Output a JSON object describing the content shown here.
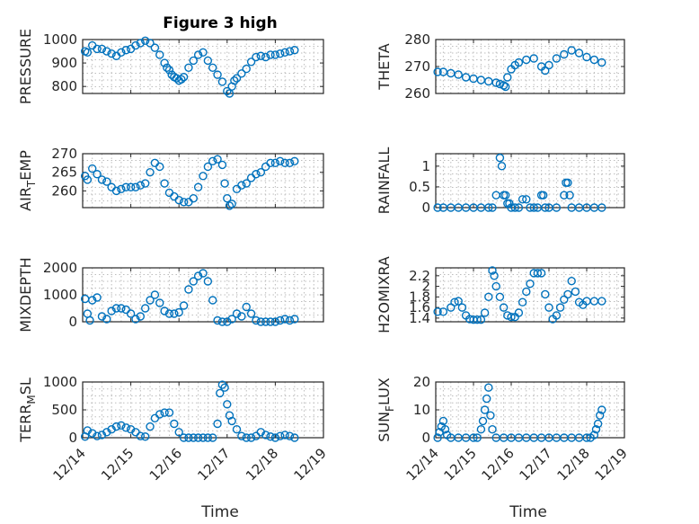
{
  "figure_title": "Figure 3 high",
  "x_label": "Time",
  "x_tick_labels": [
    "12/14",
    "12/15",
    "12/16",
    "12/17",
    "12/18",
    "12/19"
  ],
  "marker_color": "#0072BD",
  "chart_data": [
    {
      "type": "scatter",
      "ylabel_main": "PRESSURE",
      "ylabel_sub": "",
      "ylabel_tail": "",
      "ylim": [
        770,
        1000
      ],
      "yticks": [
        800,
        900,
        1000
      ],
      "grid": true,
      "x": [
        0.05,
        0.1,
        0.2,
        0.3,
        0.4,
        0.5,
        0.6,
        0.7,
        0.8,
        0.9,
        1.0,
        1.1,
        1.2,
        1.3,
        1.4,
        1.5,
        1.6,
        1.7,
        1.75,
        1.8,
        1.85,
        1.9,
        1.95,
        2.0,
        2.05,
        2.1,
        2.2,
        2.3,
        2.4,
        2.5,
        2.6,
        2.7,
        2.8,
        2.9,
        3.0,
        3.05,
        3.1,
        3.15,
        3.2,
        3.3,
        3.4,
        3.5,
        3.6,
        3.7,
        3.8,
        3.9,
        4.0,
        4.1,
        4.2,
        4.3,
        4.4
      ],
      "y": [
        950,
        945,
        975,
        960,
        960,
        950,
        940,
        930,
        945,
        955,
        960,
        975,
        985,
        995,
        985,
        965,
        935,
        900,
        880,
        870,
        850,
        840,
        835,
        825,
        830,
        840,
        880,
        910,
        935,
        945,
        910,
        880,
        850,
        820,
        780,
        770,
        800,
        825,
        835,
        855,
        875,
        905,
        925,
        930,
        925,
        935,
        935,
        940,
        945,
        950,
        955
      ]
    },
    {
      "type": "scatter",
      "ylabel_main": "THETA",
      "ylabel_sub": "",
      "ylabel_tail": "",
      "ylim": [
        260,
        280
      ],
      "yticks": [
        260,
        270,
        280
      ],
      "grid": true,
      "x": [
        0.05,
        0.2,
        0.4,
        0.6,
        0.8,
        1.0,
        1.2,
        1.4,
        1.6,
        1.7,
        1.8,
        1.85,
        1.9,
        2.0,
        2.1,
        2.2,
        2.4,
        2.6,
        2.8,
        2.9,
        3.0,
        3.2,
        3.4,
        3.6,
        3.8,
        4.0,
        4.2,
        4.4
      ],
      "y": [
        268,
        268,
        267.5,
        267,
        266,
        265.5,
        265,
        264.5,
        264,
        263.5,
        263,
        262.5,
        266,
        269,
        270.5,
        271.5,
        272.5,
        273,
        270,
        268.5,
        270.5,
        273,
        274.5,
        276,
        275,
        273.5,
        272.5,
        271.5
      ]
    },
    {
      "type": "scatter",
      "ylabel_main": "AIR",
      "ylabel_sub": "T",
      "ylabel_tail": "EMP",
      "ylim": [
        255.5,
        270
      ],
      "yticks": [
        260,
        265,
        270
      ],
      "grid": true,
      "x": [
        0.05,
        0.1,
        0.2,
        0.3,
        0.4,
        0.5,
        0.6,
        0.7,
        0.8,
        0.9,
        1.0,
        1.1,
        1.2,
        1.3,
        1.4,
        1.5,
        1.6,
        1.7,
        1.8,
        1.9,
        2.0,
        2.1,
        2.2,
        2.3,
        2.4,
        2.5,
        2.6,
        2.7,
        2.8,
        2.9,
        2.95,
        3.0,
        3.05,
        3.1,
        3.2,
        3.3,
        3.4,
        3.5,
        3.6,
        3.7,
        3.8,
        3.9,
        4.0,
        4.1,
        4.2,
        4.3,
        4.4
      ],
      "y": [
        264,
        263,
        266,
        264.5,
        263,
        262.5,
        261,
        260,
        260.5,
        261,
        261,
        261,
        261.5,
        262,
        265,
        267.5,
        266.5,
        262,
        259.5,
        258.5,
        257.5,
        257,
        257,
        258,
        261,
        264,
        266.5,
        268,
        268.5,
        267,
        262,
        258,
        256,
        256.5,
        260.5,
        261.5,
        262,
        263.5,
        264.5,
        265,
        266.5,
        267.5,
        267.5,
        268,
        267.5,
        267.5,
        268
      ]
    },
    {
      "type": "scatter",
      "ylabel_main": "RAINFALL",
      "ylabel_sub": "",
      "ylabel_tail": "",
      "ylim": [
        0,
        1.3
      ],
      "yticks": [
        0,
        0.5,
        1
      ],
      "grid": true,
      "x": [
        0.05,
        0.2,
        0.4,
        0.6,
        0.8,
        1.0,
        1.2,
        1.4,
        1.5,
        1.6,
        1.7,
        1.75,
        1.8,
        1.85,
        1.9,
        1.95,
        2.0,
        2.1,
        2.2,
        2.3,
        2.4,
        2.5,
        2.6,
        2.7,
        2.8,
        2.85,
        2.9,
        3.0,
        3.2,
        3.4,
        3.45,
        3.5,
        3.55,
        3.6,
        3.8,
        4.0,
        4.2,
        4.4
      ],
      "y": [
        0,
        0,
        0,
        0,
        0,
        0,
        0,
        0,
        0,
        0.3,
        1.2,
        1.0,
        0.3,
        0.3,
        0.1,
        0.1,
        0,
        0,
        0,
        0.2,
        0.2,
        0,
        0,
        0,
        0.3,
        0.3,
        0,
        0,
        0,
        0.3,
        0.6,
        0.6,
        0.3,
        0,
        0,
        0,
        0,
        0
      ]
    },
    {
      "type": "scatter",
      "ylabel_main": "MIXDEPTH",
      "ylabel_sub": "",
      "ylabel_tail": "",
      "ylim": [
        0,
        2000
      ],
      "yticks": [
        0,
        1000,
        2000
      ],
      "grid": true,
      "x": [
        0.05,
        0.1,
        0.15,
        0.2,
        0.3,
        0.4,
        0.5,
        0.6,
        0.7,
        0.8,
        0.9,
        1.0,
        1.1,
        1.2,
        1.3,
        1.4,
        1.5,
        1.6,
        1.7,
        1.8,
        1.9,
        2.0,
        2.1,
        2.2,
        2.3,
        2.4,
        2.5,
        2.6,
        2.7,
        2.8,
        2.9,
        3.0,
        3.1,
        3.2,
        3.3,
        3.4,
        3.5,
        3.6,
        3.7,
        3.8,
        3.9,
        4.0,
        4.1,
        4.2,
        4.3,
        4.4
      ],
      "y": [
        850,
        300,
        50,
        800,
        900,
        200,
        100,
        400,
        500,
        500,
        450,
        300,
        100,
        200,
        500,
        800,
        1000,
        700,
        400,
        300,
        300,
        350,
        600,
        1200,
        1500,
        1700,
        1800,
        1500,
        800,
        50,
        0,
        0,
        100,
        300,
        200,
        550,
        300,
        50,
        0,
        0,
        0,
        0,
        50,
        100,
        50,
        100
      ]
    },
    {
      "type": "scatter",
      "ylabel_main": "H2OMIXRA",
      "ylabel_sub": "",
      "ylabel_tail": "",
      "ylim": [
        1.33,
        2.35
      ],
      "yticks": [
        1.4,
        1.6,
        1.8,
        2,
        2.2
      ],
      "grid": true,
      "x": [
        0.05,
        0.2,
        0.4,
        0.5,
        0.6,
        0.7,
        0.8,
        0.9,
        1.0,
        1.1,
        1.2,
        1.3,
        1.4,
        1.5,
        1.55,
        1.6,
        1.7,
        1.8,
        1.9,
        2.0,
        2.1,
        2.2,
        2.3,
        2.4,
        2.5,
        2.6,
        2.7,
        2.8,
        2.9,
        3.0,
        3.1,
        3.2,
        3.3,
        3.4,
        3.5,
        3.6,
        3.7,
        3.8,
        3.9,
        4.0,
        4.2,
        4.4
      ],
      "y": [
        1.52,
        1.52,
        1.6,
        1.7,
        1.72,
        1.6,
        1.45,
        1.38,
        1.37,
        1.37,
        1.37,
        1.5,
        1.8,
        2.3,
        2.2,
        2.0,
        1.8,
        1.6,
        1.45,
        1.42,
        1.42,
        1.5,
        1.7,
        1.9,
        2.05,
        2.25,
        2.25,
        2.25,
        1.85,
        1.6,
        1.38,
        1.45,
        1.6,
        1.75,
        1.85,
        2.1,
        1.9,
        1.7,
        1.65,
        1.72,
        1.72,
        1.72
      ]
    },
    {
      "type": "scatter",
      "ylabel_main": "TERR",
      "ylabel_sub": "M",
      "ylabel_tail": "SL",
      "ylim": [
        0,
        1000
      ],
      "yticks": [
        0,
        500,
        1000
      ],
      "grid": true,
      "x": [
        0.05,
        0.1,
        0.2,
        0.3,
        0.4,
        0.5,
        0.6,
        0.7,
        0.8,
        0.9,
        1.0,
        1.1,
        1.2,
        1.3,
        1.4,
        1.5,
        1.6,
        1.7,
        1.8,
        1.9,
        2.0,
        2.1,
        2.2,
        2.3,
        2.4,
        2.5,
        2.6,
        2.7,
        2.8,
        2.85,
        2.9,
        2.95,
        3.0,
        3.05,
        3.1,
        3.2,
        3.3,
        3.4,
        3.5,
        3.6,
        3.7,
        3.8,
        3.9,
        4.0,
        4.1,
        4.2,
        4.3,
        4.4
      ],
      "y": [
        20,
        130,
        80,
        30,
        50,
        100,
        150,
        200,
        220,
        180,
        150,
        100,
        30,
        20,
        200,
        350,
        420,
        450,
        450,
        250,
        100,
        0,
        0,
        0,
        0,
        0,
        0,
        0,
        250,
        800,
        950,
        900,
        600,
        400,
        300,
        150,
        30,
        0,
        0,
        30,
        100,
        50,
        20,
        0,
        30,
        50,
        30,
        0
      ]
    },
    {
      "type": "scatter",
      "ylabel_main": "SUN",
      "ylabel_sub": "F",
      "ylabel_tail": "LUX",
      "ylim": [
        0,
        20
      ],
      "yticks": [
        0,
        10,
        20
      ],
      "grid": true,
      "x": [
        0.05,
        0.1,
        0.15,
        0.2,
        0.25,
        0.3,
        0.4,
        0.6,
        0.8,
        1.0,
        1.1,
        1.2,
        1.25,
        1.3,
        1.35,
        1.4,
        1.45,
        1.5,
        1.6,
        1.8,
        2.0,
        2.2,
        2.4,
        2.6,
        2.8,
        3.0,
        3.2,
        3.4,
        3.6,
        3.8,
        4.0,
        4.1,
        4.2,
        4.25,
        4.3,
        4.35,
        4.4
      ],
      "y": [
        0,
        2,
        4,
        6,
        3,
        1,
        0,
        0,
        0,
        0,
        0,
        3,
        6,
        10,
        14,
        18,
        8,
        3,
        0,
        0,
        0,
        0,
        0,
        0,
        0,
        0,
        0,
        0,
        0,
        0,
        0,
        0,
        1,
        3,
        5,
        8,
        10
      ]
    }
  ]
}
